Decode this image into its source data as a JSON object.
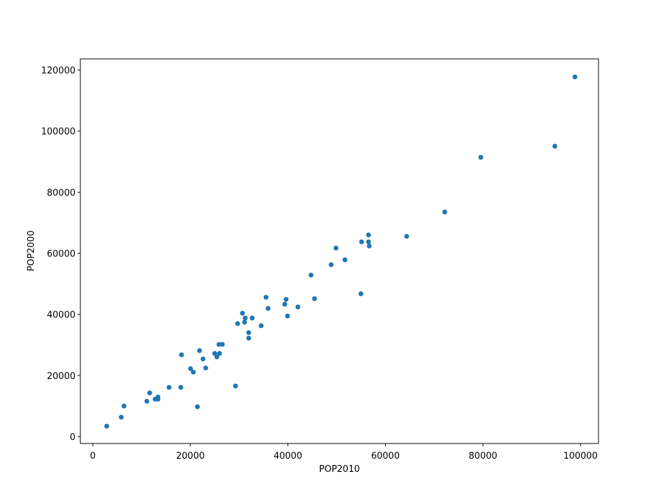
{
  "chart_data": {
    "type": "scatter",
    "xlabel": "POP2010",
    "ylabel": "POP2000",
    "color": "#1f77b4",
    "x": [
      2840,
      5820,
      6390,
      11080,
      11650,
      12780,
      13350,
      13350,
      15630,
      18040,
      18180,
      20030,
      20600,
      21450,
      21880,
      22590,
      23150,
      25000,
      25430,
      25850,
      25990,
      26560,
      29260,
      29690,
      30680,
      31110,
      31250,
      31960,
      31960,
      32670,
      34520,
      35510,
      35940,
      39350,
      39630,
      39920,
      42050,
      44740,
      45450,
      48860,
      49860,
      51700,
      54970,
      55110,
      56530,
      56530,
      56680,
      64350,
      72160,
      79550,
      94740,
      98860
    ],
    "y": [
      3400,
      6350,
      9980,
      11570,
      14290,
      12250,
      12930,
      12250,
      16110,
      16110,
      26770,
      22230,
      21100,
      9760,
      28130,
      25410,
      22460,
      27220,
      26090,
      30170,
      27220,
      30170,
      16560,
      36980,
      40380,
      37430,
      38790,
      34030,
      32210,
      38790,
      36300,
      45600,
      41970,
      43330,
      44920,
      39470,
      42420,
      52860,
      45150,
      56260,
      61710,
      57850,
      46730,
      63750,
      66020,
      63750,
      62390,
      65560,
      73500,
      91430,
      95050,
      117740
    ],
    "xlim": [
      -2560,
      103690
    ],
    "ylim": [
      -2270,
      123640
    ],
    "xticks": [
      0,
      20000,
      40000,
      60000,
      80000,
      100000
    ],
    "yticks": [
      0,
      20000,
      40000,
      60000,
      80000,
      100000,
      120000
    ]
  }
}
